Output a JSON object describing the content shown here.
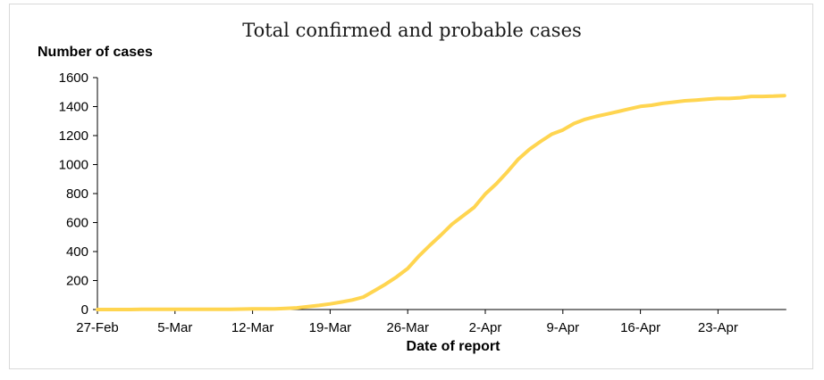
{
  "chart_data": {
    "type": "line",
    "title": "Total confirmed and probable cases",
    "ylabel": "Number of cases",
    "xlabel": "Date of report",
    "ylim": [
      0,
      1600
    ],
    "yticks": [
      "0",
      "200",
      "400",
      "600",
      "800",
      "1000",
      "1200",
      "1400",
      "1600"
    ],
    "xticks": [
      "27-Feb",
      "5-Mar",
      "12-Mar",
      "19-Mar",
      "26-Mar",
      "2-Apr",
      "9-Apr",
      "16-Apr",
      "23-Apr"
    ],
    "grid": false,
    "line_color": "#FFD550",
    "series": [
      {
        "x": [
          "27-Feb",
          "28-Feb",
          "29-Feb",
          "1-Mar",
          "2-Mar",
          "3-Mar",
          "4-Mar",
          "5-Mar",
          "6-Mar",
          "7-Mar",
          "8-Mar",
          "9-Mar",
          "10-Mar",
          "11-Mar",
          "12-Mar",
          "13-Mar",
          "14-Mar",
          "15-Mar",
          "16-Mar",
          "17-Mar",
          "18-Mar",
          "19-Mar",
          "20-Mar",
          "21-Mar",
          "22-Mar",
          "23-Mar",
          "24-Mar",
          "25-Mar",
          "26-Mar",
          "27-Mar",
          "28-Mar",
          "29-Mar",
          "30-Mar",
          "31-Mar",
          "1-Apr",
          "2-Apr",
          "3-Apr",
          "4-Apr",
          "5-Apr",
          "6-Apr",
          "7-Apr",
          "8-Apr",
          "9-Apr",
          "10-Apr",
          "11-Apr",
          "12-Apr",
          "13-Apr",
          "14-Apr",
          "15-Apr",
          "16-Apr",
          "17-Apr",
          "18-Apr",
          "19-Apr",
          "20-Apr",
          "21-Apr",
          "22-Apr",
          "23-Apr",
          "24-Apr",
          "25-Apr",
          "26-Apr",
          "27-Apr",
          "28-Apr",
          "29-Apr"
        ],
        "values": [
          0,
          0,
          0,
          0,
          1,
          1,
          1,
          1,
          1,
          1,
          1,
          2,
          2,
          3,
          5,
          5,
          5,
          8,
          12,
          20,
          28,
          39,
          52,
          66,
          86,
          130,
          175,
          225,
          283,
          368,
          443,
          514,
          589,
          647,
          705,
          797,
          868,
          950,
          1039,
          1106,
          1160,
          1210,
          1239,
          1283,
          1312,
          1332,
          1349,
          1366,
          1384,
          1401,
          1409,
          1422,
          1431,
          1440,
          1445,
          1451,
          1456,
          1456,
          1461,
          1470,
          1470,
          1472,
          1476
        ]
      }
    ]
  }
}
